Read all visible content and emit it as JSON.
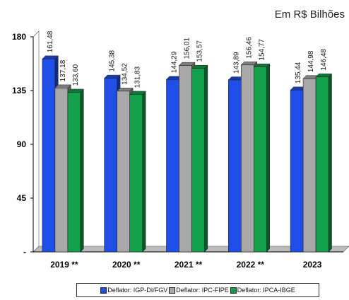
{
  "chart_data": {
    "type": "bar",
    "subtitle": "Em R$ Bilhões",
    "categories": [
      "2019 **",
      "2020 **",
      "2021 **",
      "2022 **",
      "2023"
    ],
    "series": [
      {
        "name": "Deflator: IGP-DI/FGV",
        "color": "#1f4fe8",
        "values": [
          161.48,
          145.38,
          144.29,
          143.89,
          135.44
        ],
        "labels": [
          "161,48",
          "145,38",
          "144,29",
          "143,89",
          "135,44"
        ]
      },
      {
        "name": "Deflator: IPC-FIPE",
        "color": "#a8a8a8",
        "values": [
          137.18,
          134.52,
          156.01,
          156.46,
          144.98
        ],
        "labels": [
          "137,18",
          "134,52",
          "156,01",
          "156,46",
          "144,98"
        ]
      },
      {
        "name": "Deflator: IPCA-IBGE",
        "color": "#12a04a",
        "values": [
          133.6,
          131.83,
          153.57,
          154.77,
          146.48
        ],
        "labels": [
          "133,60",
          "131,83",
          "153,57",
          "154,77",
          "146,48"
        ]
      }
    ],
    "ylim": [
      0,
      180
    ],
    "yticks": [
      0,
      45,
      90,
      135,
      180
    ],
    "ytick_labels": [
      "-",
      "45",
      "90",
      "135",
      "180"
    ],
    "grid": false,
    "legend_position": "bottom"
  }
}
